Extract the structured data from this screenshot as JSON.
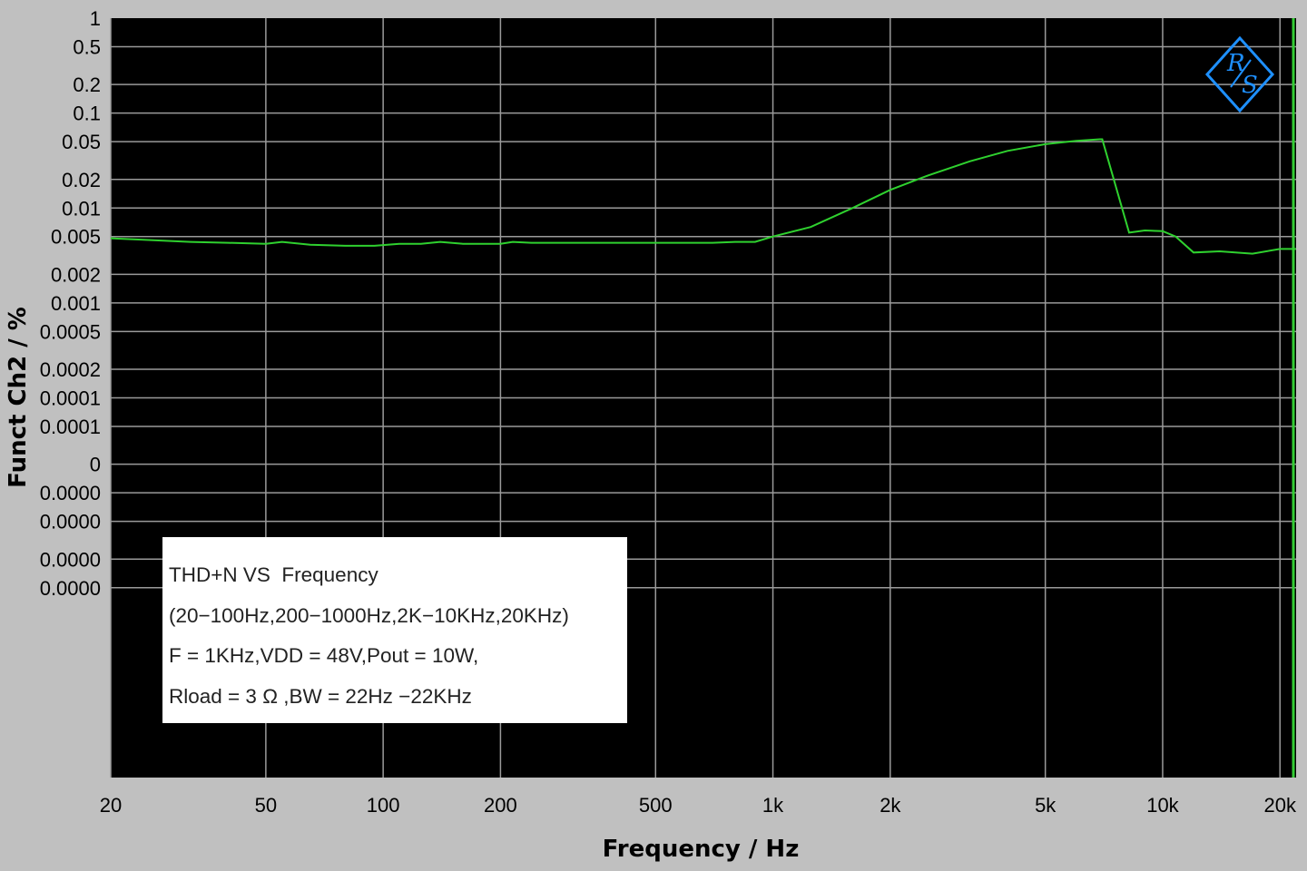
{
  "colors": {
    "background": "#c0c0c0",
    "plot_area": "#000000",
    "grid": "#9a9a9a",
    "trace": "#2fd12f",
    "marker_line": "#33cc33",
    "logo": "#1e90ff"
  },
  "logo": {
    "icon": "rohde-schwarz-logo-icon",
    "text": "R&S"
  },
  "legend": {
    "lines": [
      "THD+N VS  Frequency",
      "(20−100Hz,200−1000Hz,2K−10KHz,20KHz)",
      "F = 1KHz,VDD = 48V,Pout = 10W,",
      "Rload = 3 Ω ,BW = 22Hz −22KHz"
    ]
  },
  "chart_data": {
    "type": "line",
    "title": "",
    "xlabel": "Frequency / Hz",
    "ylabel": "Funct Ch2 / %",
    "x_scale": "log",
    "y_scale": "log",
    "xlim": [
      20,
      22000
    ],
    "ylim": [
      1e-08,
      1
    ],
    "grid": true,
    "x_ticks": [
      {
        "value": 20,
        "label": "20"
      },
      {
        "value": 50,
        "label": "50"
      },
      {
        "value": 100,
        "label": "100"
      },
      {
        "value": 200,
        "label": "200"
      },
      {
        "value": 500,
        "label": "500"
      },
      {
        "value": 1000,
        "label": "1k"
      },
      {
        "value": 2000,
        "label": "2k"
      },
      {
        "value": 5000,
        "label": "5k"
      },
      {
        "value": 10000,
        "label": "10k"
      },
      {
        "value": 20000,
        "label": "20k"
      }
    ],
    "y_ticks": [
      {
        "value": 1,
        "label": "1"
      },
      {
        "value": 0.5,
        "label": "0.5"
      },
      {
        "value": 0.2,
        "label": "0.2"
      },
      {
        "value": 0.1,
        "label": "0.1"
      },
      {
        "value": 0.05,
        "label": "0.05"
      },
      {
        "value": 0.02,
        "label": "0.02"
      },
      {
        "value": 0.01,
        "label": "0.01"
      },
      {
        "value": 0.005,
        "label": "0.005"
      },
      {
        "value": 0.002,
        "label": "0.002"
      },
      {
        "value": 0.001,
        "label": "0.001"
      },
      {
        "value": 0.0005,
        "label": "0.0005"
      },
      {
        "value": 0.0002,
        "label": "0.0002"
      },
      {
        "value": 0.0001,
        "label": "0.0001"
      },
      {
        "value": 5e-05,
        "label": "0.0001"
      },
      {
        "value": 2e-05,
        "label": "0"
      },
      {
        "value": 1e-05,
        "label": "0.0000"
      },
      {
        "value": 5e-06,
        "label": "0.0000"
      },
      {
        "value": 2e-06,
        "label": "0.0000"
      },
      {
        "value": 1e-06,
        "label": "0.0000"
      }
    ],
    "series": [
      {
        "name": "",
        "x": [
          20,
          25,
          32,
          40,
          50,
          55,
          65,
          80,
          95,
          110,
          125,
          140,
          160,
          200,
          215,
          240,
          300,
          400,
          500,
          600,
          700,
          800,
          900,
          1000,
          1250,
          1600,
          2000,
          2500,
          3200,
          4000,
          5000,
          6000,
          6900,
          7000,
          8200,
          9000,
          10000,
          10800,
          12000,
          14000,
          17000,
          20000,
          22000
        ],
        "y": [
          0.0048,
          0.0046,
          0.0044,
          0.0043,
          0.0042,
          0.0044,
          0.0041,
          0.004,
          0.004,
          0.0042,
          0.0042,
          0.0044,
          0.0042,
          0.0042,
          0.0044,
          0.0043,
          0.0043,
          0.0043,
          0.0043,
          0.0043,
          0.0043,
          0.0044,
          0.0044,
          0.005,
          0.0063,
          0.01,
          0.0155,
          0.022,
          0.031,
          0.04,
          0.047,
          0.051,
          0.053,
          0.053,
          0.0055,
          0.0058,
          0.0057,
          0.005,
          0.0034,
          0.0035,
          0.0033,
          0.0037,
          0.0037
        ]
      }
    ],
    "markers": [
      {
        "x": 22000
      }
    ]
  }
}
